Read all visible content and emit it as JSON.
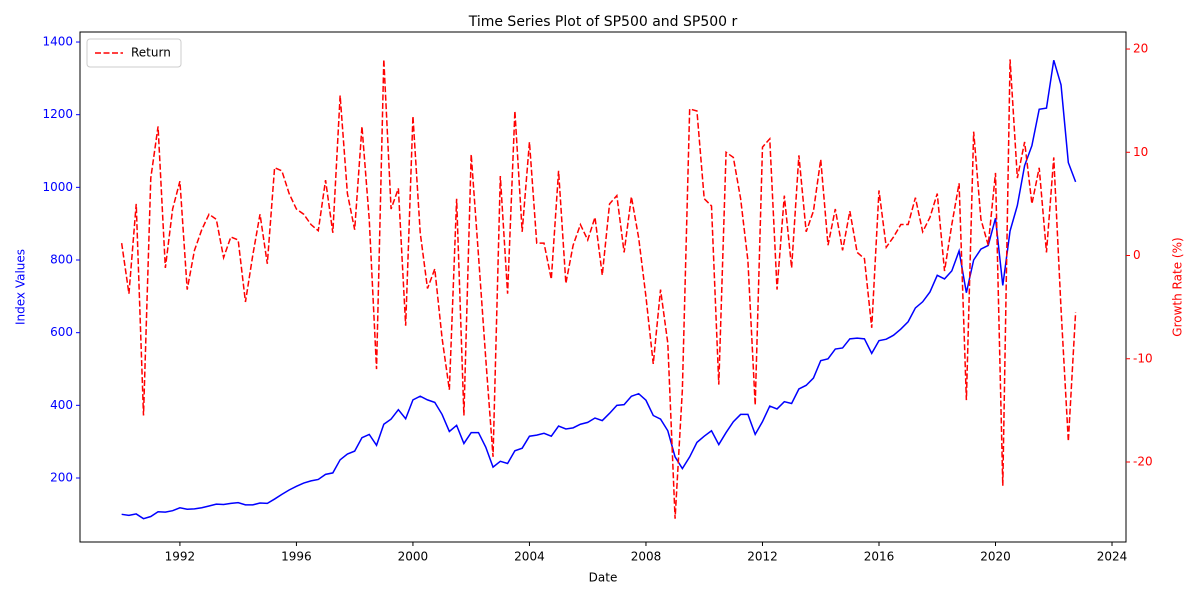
{
  "chart_data": {
    "type": "line",
    "title": "Time Series Plot of SP500 and SP500 r",
    "x_label": "Date",
    "y_label": "Index Values",
    "y2_label": "Growth Rate (%)",
    "x": [
      1990,
      1990.25,
      1990.5,
      1990.75,
      1991,
      1991.25,
      1991.5,
      1991.75,
      1992,
      1992.25,
      1992.5,
      1992.75,
      1993,
      1993.25,
      1993.5,
      1993.75,
      1994,
      1994.25,
      1994.5,
      1994.75,
      1995,
      1995.25,
      1995.5,
      1995.75,
      1996,
      1996.25,
      1996.5,
      1996.75,
      1997,
      1997.25,
      1997.5,
      1997.75,
      1998,
      1998.25,
      1998.5,
      1998.75,
      1999,
      1999.25,
      1999.5,
      1999.75,
      2000,
      2000.25,
      2000.5,
      2000.75,
      2001,
      2001.25,
      2001.5,
      2001.75,
      2002,
      2002.25,
      2002.5,
      2002.75,
      2003,
      2003.25,
      2003.5,
      2003.75,
      2004,
      2004.25,
      2004.5,
      2004.75,
      2005,
      2005.25,
      2005.5,
      2005.75,
      2006,
      2006.25,
      2006.5,
      2006.75,
      2007,
      2007.25,
      2007.5,
      2007.75,
      2008,
      2008.25,
      2008.5,
      2008.75,
      2009,
      2009.25,
      2009.5,
      2009.75,
      2010,
      2010.25,
      2010.5,
      2010.75,
      2011,
      2011.25,
      2011.5,
      2011.75,
      2012,
      2012.25,
      2012.5,
      2012.75,
      2013,
      2013.25,
      2013.5,
      2013.75,
      2014,
      2014.25,
      2014.5,
      2014.75,
      2015,
      2015.25,
      2015.5,
      2015.75,
      2016,
      2016.25,
      2016.5,
      2016.75,
      2017,
      2017.25,
      2017.5,
      2017.75,
      2018,
      2018.25,
      2018.5,
      2018.75,
      2019,
      2019.25,
      2019.5,
      2019.75,
      2020,
      2020.25,
      2020.5,
      2020.75,
      2021,
      2021.25,
      2021.5,
      2021.75,
      2022,
      2022.25,
      2022.5,
      2022.75
    ],
    "series": [
      {
        "color": "#0000ff",
        "style": "solid",
        "axis": "y",
        "values": [
          100,
          97,
          101,
          88,
          94,
          107,
          106,
          110,
          118,
          114,
          115,
          118,
          123,
          128,
          127,
          130,
          132,
          126,
          126,
          131,
          130,
          142,
          155,
          167,
          177,
          186,
          192,
          196,
          210,
          214,
          250,
          266,
          274,
          311,
          320,
          290,
          348,
          362,
          388,
          363,
          415,
          425,
          415,
          408,
          375,
          328,
          345,
          295,
          325,
          325,
          285,
          230,
          246,
          240,
          275,
          282,
          315,
          318,
          323,
          315,
          343,
          335,
          338,
          348,
          353,
          365,
          358,
          378,
          400,
          402,
          425,
          432,
          414,
          372,
          362,
          330,
          258,
          226,
          258,
          298,
          315,
          330,
          292,
          325,
          355,
          375,
          375,
          320,
          355,
          398,
          390,
          410,
          405,
          445,
          455,
          475,
          523,
          528,
          555,
          558,
          583,
          585,
          583,
          543,
          578,
          582,
          593,
          610,
          630,
          668,
          685,
          712,
          758,
          748,
          770,
          825,
          710,
          800,
          830,
          840,
          915,
          730,
          880,
          950,
          1060,
          1115,
          1215,
          1218,
          1350,
          1282,
          1068,
          1015
        ]
      },
      {
        "name": "Return",
        "color": "#ff0000",
        "style": "dashed",
        "axis": "y2",
        "values": [
          1.2,
          -3.7,
          5,
          -15.5,
          7.5,
          12.5,
          -1.2,
          4.5,
          7.2,
          -3.3,
          0.5,
          2.5,
          4,
          3.5,
          -0.2,
          1.8,
          1.5,
          -4.5,
          0,
          4,
          -0.8,
          8.5,
          8.2,
          6,
          4.5,
          4,
          3,
          2.4,
          7.3,
          2.2,
          15.5,
          6,
          2.5,
          12.5,
          3.5,
          -11,
          19,
          4.5,
          6.5,
          -6.8,
          13.5,
          2.2,
          -3.2,
          -1.3,
          -8,
          -13,
          5.5,
          -15.5,
          9.8,
          0,
          -10,
          -19.5,
          7.7,
          -3.7,
          14,
          2.3,
          11,
          1.2,
          1.2,
          -2.3,
          8.2,
          -2.7,
          1,
          3,
          1.5,
          3.7,
          -1.9,
          5,
          5.8,
          0.3,
          5.7,
          1.7,
          -4,
          -10.5,
          -3.3,
          -8.5,
          -25.5,
          -13,
          14.2,
          14,
          5.5,
          4.8,
          -12.5,
          10,
          9.5,
          5.5,
          -0.5,
          -14.5,
          10.5,
          11.3,
          -3.3,
          5.8,
          -1.2,
          9.7,
          2.3,
          4.3,
          9.3,
          1,
          4.5,
          0.5,
          4.3,
          0.3,
          -0.3,
          -7,
          6.3,
          0.8,
          1.8,
          3,
          3,
          5.6,
          2.3,
          3.7,
          6,
          -1.5,
          3,
          7,
          -14,
          12,
          3.5,
          1,
          8,
          -22.3,
          19,
          7.5,
          11,
          5,
          8.5,
          0.3,
          9.5,
          -5.2,
          -18,
          -5.5
        ]
      }
    ],
    "xlim": [
      1988.57,
      2024.48
    ],
    "xticks": [
      1992,
      1996,
      2000,
      2004,
      2008,
      2012,
      2016,
      2020,
      2024
    ],
    "ylim": [
      23.8,
      1427.6
    ],
    "yticks": [
      200,
      400,
      600,
      800,
      1000,
      1200,
      1400
    ],
    "y2lim": [
      -27.75,
      21.65
    ],
    "y2ticks": [
      -20,
      -10,
      0,
      10,
      20
    ],
    "grid": false,
    "legend": "upper left"
  }
}
